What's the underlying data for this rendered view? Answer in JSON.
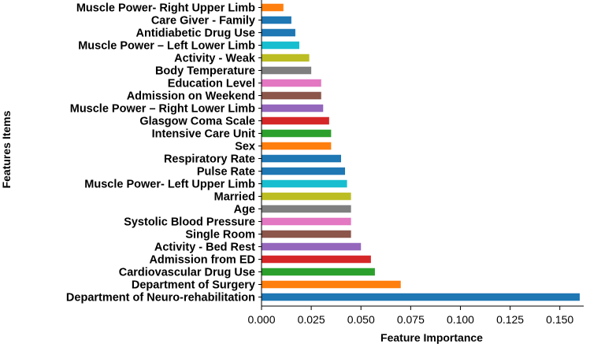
{
  "chart_data": {
    "type": "bar",
    "orientation": "horizontal",
    "xlabel": "Feature Importance",
    "ylabel": "Features Items",
    "xlim": [
      0,
      0.162
    ],
    "xticks": [
      0.0,
      0.025,
      0.05,
      0.075,
      0.1,
      0.125,
      0.15
    ],
    "xtick_labels": [
      "0.000",
      "0.025",
      "0.050",
      "0.075",
      "0.100",
      "0.125",
      "0.150"
    ],
    "grid": false,
    "bars": [
      {
        "label": "Department of Neuro-rehabilitation",
        "value": 0.16,
        "color": "#1f77b4"
      },
      {
        "label": "Department of Surgery",
        "value": 0.07,
        "color": "#ff7f0e"
      },
      {
        "label": "Cardiovascular Drug Use",
        "value": 0.057,
        "color": "#2ca02c"
      },
      {
        "label": "Admission from ED",
        "value": 0.055,
        "color": "#d62728"
      },
      {
        "label": "Activity - Bed Rest",
        "value": 0.05,
        "color": "#9467bd"
      },
      {
        "label": "Single Room",
        "value": 0.045,
        "color": "#8c564b"
      },
      {
        "label": "Systolic Blood Pressure",
        "value": 0.045,
        "color": "#e377c2"
      },
      {
        "label": "Age",
        "value": 0.045,
        "color": "#7f7f7f"
      },
      {
        "label": "Married",
        "value": 0.045,
        "color": "#bcbd22"
      },
      {
        "label": "Muscle Power- Left Upper Limb",
        "value": 0.043,
        "color": "#17becf"
      },
      {
        "label": "Pulse Rate",
        "value": 0.042,
        "color": "#1f77b4"
      },
      {
        "label": "Respiratory Rate",
        "value": 0.04,
        "color": "#1f77b4"
      },
      {
        "label": "Sex",
        "value": 0.035,
        "color": "#ff7f0e"
      },
      {
        "label": "Intensive Care Unit",
        "value": 0.035,
        "color": "#2ca02c"
      },
      {
        "label": "Glasgow Coma Scale",
        "value": 0.034,
        "color": "#d62728"
      },
      {
        "label": "Muscle Power – Right Lower Limb",
        "value": 0.031,
        "color": "#9467bd"
      },
      {
        "label": "Admission on Weekend",
        "value": 0.03,
        "color": "#8c564b"
      },
      {
        "label": "Education Level",
        "value": 0.03,
        "color": "#e377c2"
      },
      {
        "label": "Body Temperature",
        "value": 0.025,
        "color": "#7f7f7f"
      },
      {
        "label": "Activity - Weak",
        "value": 0.024,
        "color": "#bcbd22"
      },
      {
        "label": "Muscle Power – Left Lower Limb",
        "value": 0.019,
        "color": "#17becf"
      },
      {
        "label": "Antidiabetic Drug Use",
        "value": 0.017,
        "color": "#1f77b4"
      },
      {
        "label": "Care Giver - Family",
        "value": 0.015,
        "color": "#1f77b4"
      },
      {
        "label": "Muscle Power- Right Upper Limb",
        "value": 0.011,
        "color": "#ff7f0e"
      }
    ]
  }
}
